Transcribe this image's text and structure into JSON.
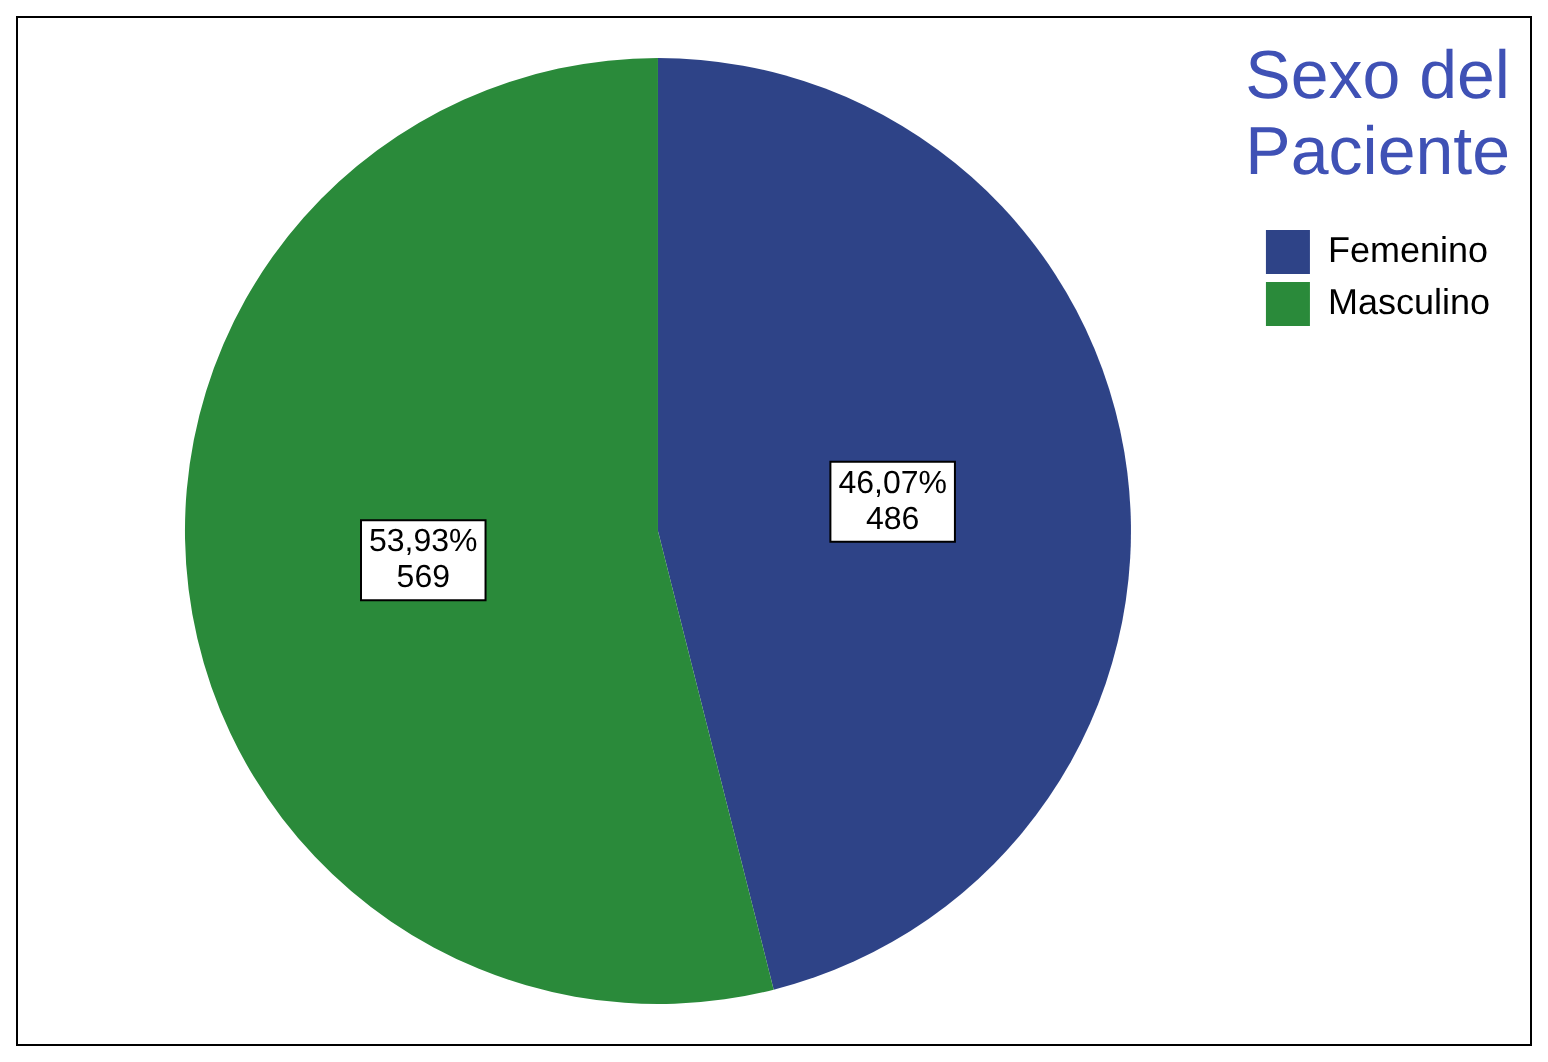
{
  "chart_data": {
    "type": "pie",
    "legend_title": "Sexo del Paciente",
    "categories": [
      "Femenino",
      "Masculino"
    ],
    "values": [
      486,
      569
    ],
    "colors": [
      "#2e4387",
      "#2a8a3a"
    ],
    "value_labels": [
      "46,07%\n486",
      "53,93%\n569"
    ],
    "legend": "top right"
  }
}
